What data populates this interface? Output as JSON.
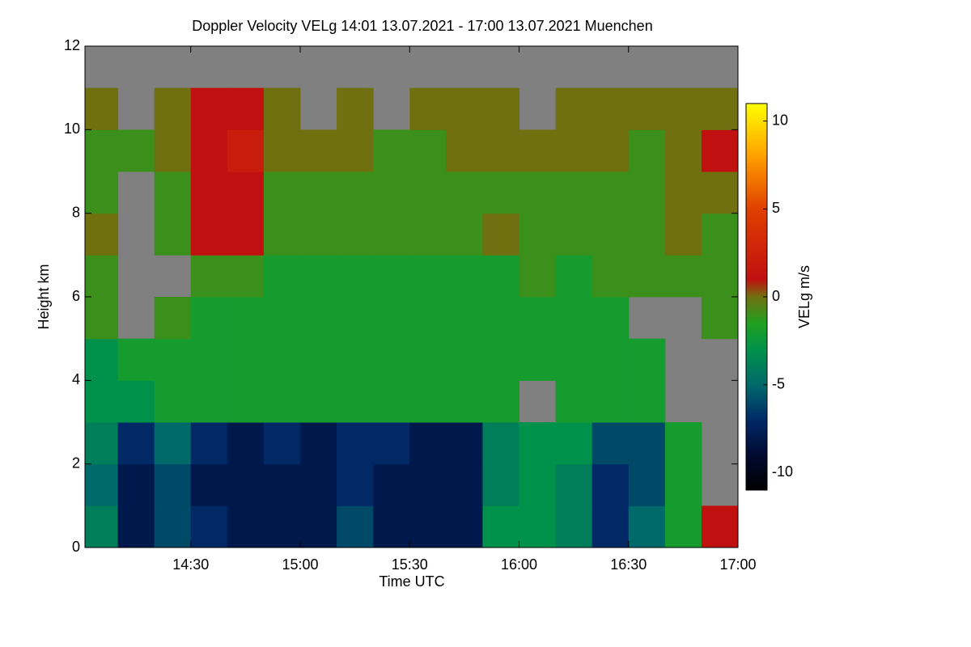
{
  "chart_data": {
    "type": "heatmap",
    "title": "Doppler Velocity VELg   14:01 13.07.2021 - 17:00 13.07.2021 Muenchen",
    "x_label": "Time UTC",
    "y_label": "Height km",
    "colorbar_label": "VELg m/s",
    "xlim": [
      14.0167,
      17.0
    ],
    "xticks": [
      {
        "value": 14.5,
        "label": "14:30"
      },
      {
        "value": 15.0,
        "label": "15:00"
      },
      {
        "value": 15.5,
        "label": "15:30"
      },
      {
        "value": 16.0,
        "label": "16:00"
      },
      {
        "value": 16.5,
        "label": "16:30"
      },
      {
        "value": 17.0,
        "label": "17:00"
      }
    ],
    "ylim": [
      0,
      12
    ],
    "yticks": [
      0,
      2,
      4,
      6,
      8,
      10,
      12
    ],
    "clim": [
      -11,
      11
    ],
    "cticks": [
      -10,
      -5,
      0,
      5,
      10
    ],
    "missing_color": "#808080",
    "xbins": [
      14.0167,
      14.1667,
      14.3333,
      14.5,
      14.6667,
      14.8333,
      15.0,
      15.1667,
      15.3333,
      15.5,
      15.6667,
      15.8333,
      16.0,
      16.1667,
      16.3333,
      16.5,
      16.6667,
      16.8333,
      17.0
    ],
    "ybins": [
      0,
      1,
      2,
      3,
      4,
      5,
      6,
      7,
      8,
      9,
      10,
      11,
      12
    ],
    "z": [
      [
        -4,
        -8,
        -6,
        -7,
        -8,
        -8,
        -8,
        -6,
        -8,
        -8,
        -8,
        -3,
        -3,
        -4,
        -7,
        -5,
        -2,
        1
      ],
      [
        -5,
        -8,
        -6,
        -8,
        -8,
        -8,
        -8,
        -7,
        -8,
        -8,
        -8,
        -4,
        -3,
        -4,
        -7,
        -6,
        -2,
        null
      ],
      [
        -4,
        -7,
        -5,
        -7,
        -8,
        -7,
        -8,
        -7,
        -7,
        -8,
        -8,
        -4,
        -3,
        -3,
        -6,
        -6,
        -2,
        null
      ],
      [
        -3,
        -3,
        -2,
        -2,
        -2,
        -2,
        -2,
        -2,
        -2,
        -2,
        -2,
        -2,
        null,
        -2,
        -2,
        -2,
        null,
        null
      ],
      [
        -3,
        -2,
        -2,
        -2,
        -2,
        -2,
        -2,
        -2,
        -2,
        -2,
        -2,
        -2,
        -2,
        -2,
        -2,
        -2,
        null,
        null
      ],
      [
        -1,
        null,
        -1,
        -2,
        -2,
        -2,
        -2,
        -2,
        -2,
        -2,
        -2,
        -2,
        -2,
        -2,
        -2,
        null,
        null,
        -1
      ],
      [
        -1,
        null,
        null,
        -1,
        -1,
        -2,
        -2,
        -2,
        -2,
        -2,
        -2,
        -2,
        -1,
        -2,
        -1,
        -1,
        -1,
        -1
      ],
      [
        0,
        null,
        -1,
        1,
        1,
        -1,
        -1,
        -1,
        -1,
        -1,
        -1,
        0,
        -1,
        -1,
        -1,
        -1,
        0,
        -1
      ],
      [
        -1,
        null,
        -1,
        1,
        1,
        -1,
        -1,
        -1,
        -1,
        -1,
        -1,
        -1,
        -1,
        -1,
        -1,
        -1,
        0,
        0
      ],
      [
        -1,
        -1,
        0,
        1,
        2,
        0,
        0,
        0,
        -1,
        -1,
        0,
        0,
        0,
        0,
        0,
        -1,
        0,
        1
      ],
      [
        0,
        null,
        0,
        1,
        1,
        0,
        null,
        0,
        null,
        0,
        0,
        0,
        null,
        0,
        0,
        0,
        0,
        0
      ],
      [
        null,
        null,
        null,
        null,
        null,
        null,
        null,
        null,
        null,
        null,
        null,
        null,
        null,
        null,
        null,
        null,
        null,
        null
      ]
    ]
  }
}
